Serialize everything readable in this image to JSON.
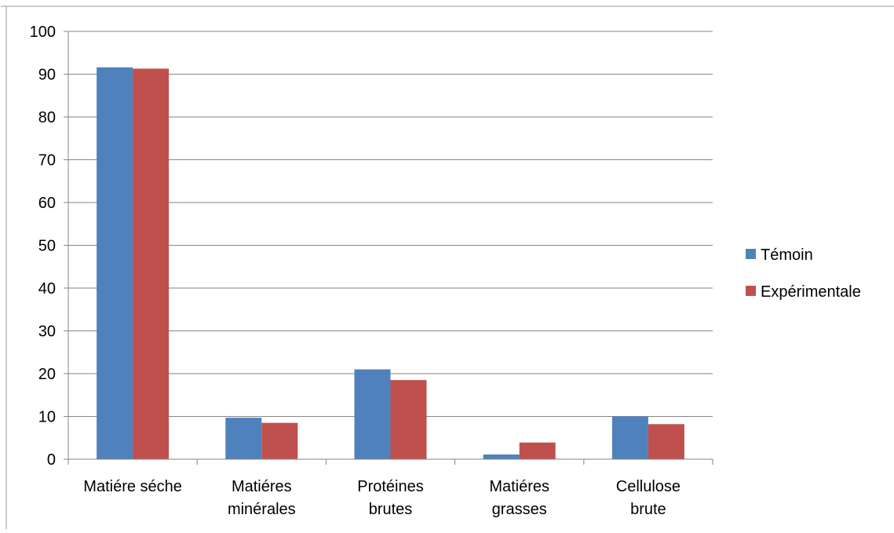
{
  "chart_data": {
    "type": "bar",
    "categories": [
      [
        "Matiére séche"
      ],
      [
        "Matiéres",
        "minérales"
      ],
      [
        "Protéines",
        "brutes"
      ],
      [
        "Matiéres",
        "grasses"
      ],
      [
        "Cellulose",
        "brute"
      ]
    ],
    "series": [
      {
        "name": "Témoin",
        "color": "#4F81BD",
        "values": [
          91.6,
          9.7,
          21.0,
          1.1,
          10.0
        ]
      },
      {
        "name": "Expérimentale",
        "color": "#C0504D",
        "values": [
          91.3,
          8.5,
          18.5,
          3.9,
          8.2
        ]
      }
    ],
    "ylim": [
      0,
      100
    ],
    "yticks": [
      "0",
      "10",
      "20",
      "30",
      "40",
      "50",
      "60",
      "70",
      "80",
      "90",
      "100"
    ],
    "grid": true,
    "legend_position": "right",
    "gridline_color": "#868686",
    "axis_color": "#868686"
  }
}
